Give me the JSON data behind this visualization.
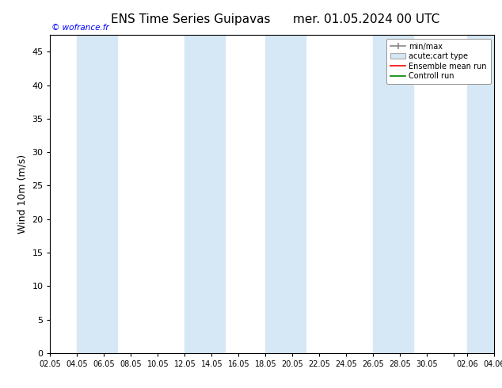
{
  "title_left": "ENS Time Series Guipavas",
  "title_right": "mer. 01.05.2024 00 UTC",
  "ylabel": "Wind 10m (m/s)",
  "watermark": "© wofrance.fr",
  "ylim": [
    0,
    47.5
  ],
  "yticks": [
    0,
    5,
    10,
    15,
    20,
    25,
    30,
    35,
    40,
    45
  ],
  "xtick_labels": [
    "02.05",
    "04.05",
    "06.05",
    "08.05",
    "10.05",
    "12.05",
    "14.05",
    "16.05",
    "18.05",
    "20.05",
    "22.05",
    "24.05",
    "26.05",
    "28.05",
    "30.05",
    "",
    "02.06",
    "04.06"
  ],
  "band_color": "#d6e8f5",
  "background_color": "#ffffff",
  "legend_entries": [
    "min/max",
    "acute;cart type",
    "Ensemble mean run",
    "Controll run"
  ],
  "legend_colors": [
    "#aaaaaa",
    "#c8dcea",
    "#ff0000",
    "#008000"
  ],
  "fig_width": 6.34,
  "fig_height": 4.9,
  "dpi": 100,
  "band_pairs": [
    [
      3,
      5
    ],
    [
      9,
      11
    ],
    [
      17,
      19
    ],
    [
      25,
      27
    ],
    [
      31,
      33
    ]
  ],
  "xlim_days": [
    0,
    33
  ]
}
